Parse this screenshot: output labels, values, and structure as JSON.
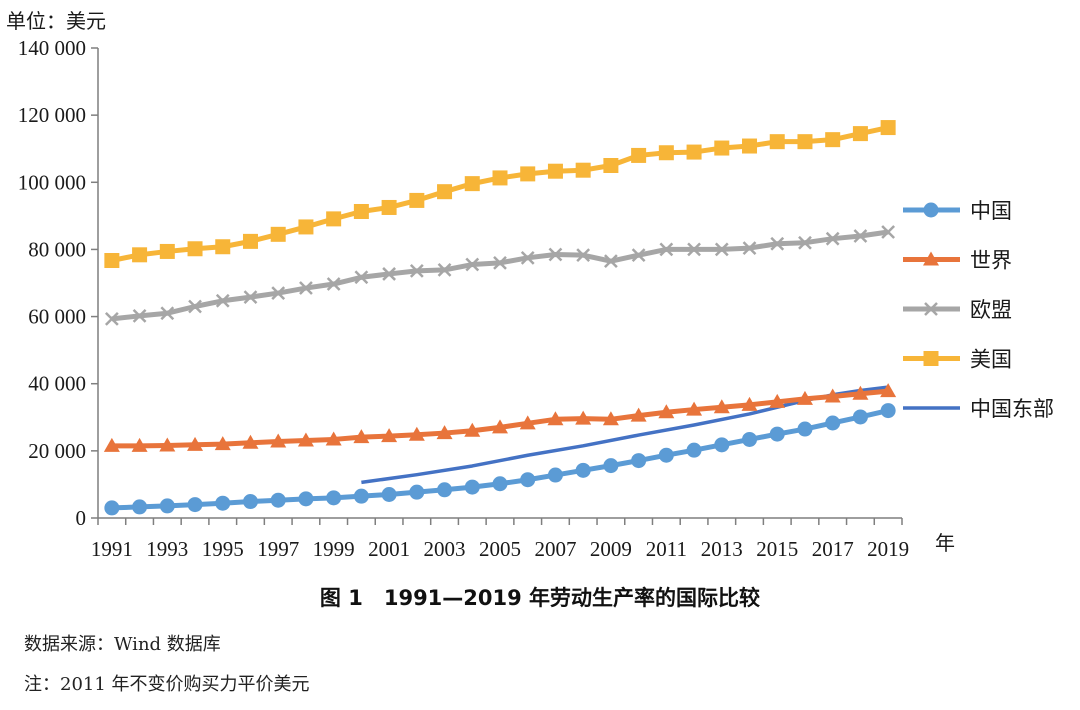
{
  "chart_data": {
    "type": "line",
    "unit_label": "单位：美元",
    "x_unit": "年",
    "ylim": [
      0,
      140000
    ],
    "yticks": [
      0,
      20000,
      40000,
      60000,
      80000,
      100000,
      120000,
      140000
    ],
    "ytick_labels": [
      "0",
      "20 000",
      "40 000",
      "60 000",
      "80 000",
      "100 000",
      "120 000",
      "140 000"
    ],
    "xlim": [
      1991,
      2019
    ],
    "xtick_labels": [
      "1991",
      "1993",
      "1995",
      "1997",
      "1999",
      "2001",
      "2003",
      "2005",
      "2007",
      "2009",
      "2011",
      "2013",
      "2015",
      "2017",
      "2019"
    ],
    "grid": false,
    "legend_position": "right",
    "x": [
      1991,
      1992,
      1993,
      1994,
      1995,
      1996,
      1997,
      1998,
      1999,
      2000,
      2001,
      2002,
      2003,
      2004,
      2005,
      2006,
      2007,
      2008,
      2009,
      2010,
      2011,
      2012,
      2013,
      2014,
      2015,
      2016,
      2017,
      2018,
      2019
    ],
    "series": [
      {
        "name": "中国",
        "color": "#5b9bd5",
        "marker": "circle",
        "values": [
          3000,
          3300,
          3600,
          4000,
          4400,
          4900,
          5300,
          5700,
          6000,
          6500,
          7000,
          7700,
          8400,
          9200,
          10200,
          11400,
          12800,
          14200,
          15600,
          17100,
          18700,
          20200,
          21800,
          23400,
          25000,
          26500,
          28300,
          30100,
          32000
        ]
      },
      {
        "name": "世界",
        "color": "#e8743b",
        "marker": "triangle",
        "values": [
          21500,
          21500,
          21600,
          21800,
          22000,
          22400,
          22800,
          23100,
          23400,
          24100,
          24400,
          24800,
          25300,
          26000,
          27000,
          28200,
          29400,
          29600,
          29400,
          30500,
          31500,
          32300,
          33000,
          33700,
          34600,
          35500,
          36200,
          37000,
          37800
        ]
      },
      {
        "name": "欧盟",
        "color": "#a6a6a6",
        "marker": "cross",
        "values": [
          59300,
          60200,
          61000,
          63000,
          64700,
          65800,
          67000,
          68500,
          69700,
          71700,
          72700,
          73600,
          73900,
          75500,
          76000,
          77500,
          78500,
          78300,
          76500,
          78300,
          80000,
          80000,
          80000,
          80400,
          81700,
          82000,
          83200,
          84000,
          85200
        ]
      },
      {
        "name": "美国",
        "color": "#f7b538",
        "marker": "square",
        "values": [
          76700,
          78400,
          79400,
          80200,
          80800,
          82400,
          84500,
          86700,
          89100,
          91300,
          92500,
          94600,
          97200,
          99600,
          101300,
          102500,
          103300,
          103600,
          105000,
          108000,
          108800,
          109000,
          110200,
          110800,
          112100,
          112100,
          112700,
          114500,
          116300
        ]
      },
      {
        "name": "中国东部",
        "color": "#4472c4",
        "marker": "none",
        "x": [
          2000,
          2002,
          2004,
          2006,
          2008,
          2010,
          2012,
          2014,
          2016,
          2017,
          2018,
          2019
        ],
        "values": [
          10600,
          12900,
          15500,
          18700,
          21500,
          24700,
          27700,
          31000,
          35000,
          36700,
          38000,
          39000
        ]
      }
    ]
  },
  "caption": "图 1　1991—2019 年劳动生产率的国际比较",
  "notes": {
    "source": "数据来源：Wind 数据库",
    "unit_note": "注：2011 年不变价购买力平价美元"
  }
}
